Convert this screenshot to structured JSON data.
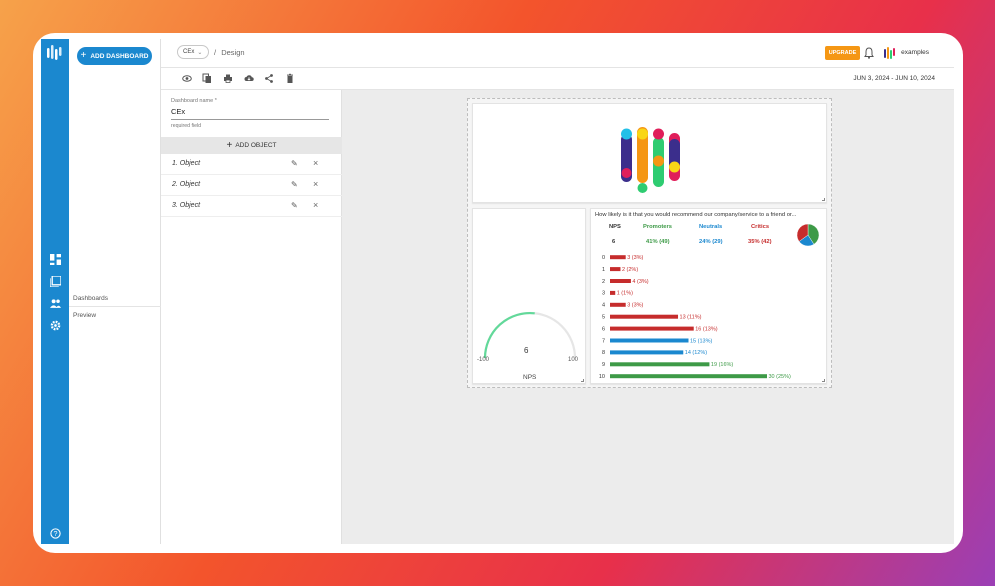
{
  "app": {
    "add_dashboard_label": "ADD DASHBOARD",
    "nav": {
      "dashboards": "Dashboards",
      "preview": "Preview"
    }
  },
  "topbar": {
    "dashboard_select_value": "CEx",
    "breadcrumb_separator": "/",
    "breadcrumb_page": "Design",
    "upgrade_label": "UPGRADE",
    "username": "examples"
  },
  "toolbar": {
    "icons": [
      "eye-icon",
      "copy-icon",
      "print-icon",
      "cloud-download-icon",
      "share-icon",
      "trash-icon"
    ],
    "date_range": "JUN 3, 2024 - JUN 10, 2024"
  },
  "panel": {
    "field_label": "Dashboard name *",
    "field_value": "CEx",
    "field_help": "required field",
    "add_object_label": "ADD OBJECT",
    "objects": [
      {
        "label": "1. Object"
      },
      {
        "label": "2. Object"
      },
      {
        "label": "3. Object"
      }
    ]
  },
  "nps_card": {
    "value": "6",
    "min_label": "-100",
    "max_label": "100",
    "title": "NPS"
  },
  "question_card": {
    "question": "How likely is it that you would recommend our company/service to a friend or...",
    "headers": {
      "nps": "NPS",
      "promoters": "Promoters",
      "neutrals": "Neutrals",
      "critics": "Critics"
    },
    "values": {
      "nps": "6",
      "promoters": "41% (49)",
      "neutrals": "24% (29)",
      "critics": "35% (42)"
    },
    "colors": {
      "promoters": "#3d9a47",
      "neutrals": "#1b88cf",
      "critics": "#c62c2c"
    }
  },
  "chart_data": {
    "type": "bar",
    "orientation": "horizontal",
    "categories": [
      "0",
      "1",
      "2",
      "3",
      "4",
      "5",
      "6",
      "7",
      "8",
      "9",
      "10"
    ],
    "values": [
      3,
      2,
      4,
      1,
      3,
      13,
      16,
      15,
      14,
      19,
      30
    ],
    "labels": [
      "3 (3%)",
      "2 (2%)",
      "4 (3%)",
      "1 (1%)",
      "3 (3%)",
      "13 (11%)",
      "16 (13%)",
      "15 (13%)",
      "14 (12%)",
      "19 (16%)",
      "30 (25%)"
    ],
    "bar_colors": [
      "#c62c2c",
      "#c62c2c",
      "#c62c2c",
      "#c62c2c",
      "#c62c2c",
      "#c62c2c",
      "#c62c2c",
      "#1b88cf",
      "#1b88cf",
      "#3d9a47",
      "#3d9a47"
    ],
    "pie": {
      "values": [
        41,
        24,
        35
      ],
      "colors": [
        "#3d9a47",
        "#1b88cf",
        "#c62c2c"
      ]
    }
  }
}
